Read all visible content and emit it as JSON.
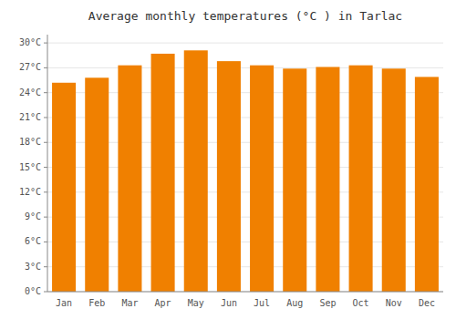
{
  "chart_data": {
    "type": "bar",
    "title": "Average monthly temperatures (°C ) in Tarlac",
    "categories": [
      "Jan",
      "Feb",
      "Mar",
      "Apr",
      "May",
      "Jun",
      "Jul",
      "Aug",
      "Sep",
      "Oct",
      "Nov",
      "Dec"
    ],
    "values": [
      25.2,
      25.8,
      27.3,
      28.7,
      29.1,
      27.8,
      27.3,
      26.9,
      27.1,
      27.3,
      26.9,
      25.9
    ],
    "color": "#F08000",
    "ylim": [
      0,
      31
    ],
    "yticks": [
      {
        "value": 0,
        "label": "0°C"
      },
      {
        "value": 3,
        "label": "3°C"
      },
      {
        "value": 6,
        "label": "6°C"
      },
      {
        "value": 9,
        "label": "9°C"
      },
      {
        "value": 12,
        "label": "12°C"
      },
      {
        "value": 15,
        "label": "15°C"
      },
      {
        "value": 18,
        "label": "18°C"
      },
      {
        "value": 21,
        "label": "21°C"
      },
      {
        "value": 24,
        "label": "24°C"
      },
      {
        "value": 27,
        "label": "27°C"
      },
      {
        "value": 30,
        "label": "30°C"
      }
    ],
    "grid": true
  }
}
